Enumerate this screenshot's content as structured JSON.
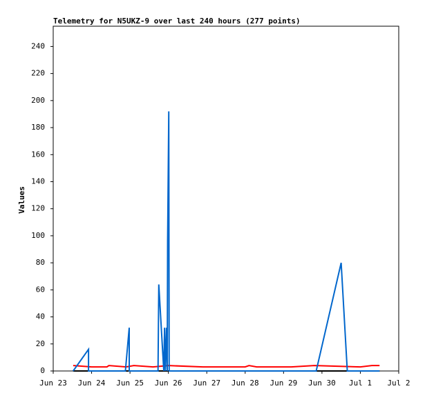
{
  "chart_data": {
    "type": "line",
    "title": "Telemetry for N5UKZ-9 over last 240 hours (277 points)",
    "y_label": "Values",
    "xlim": [
      0,
      9
    ],
    "xticks": [
      {
        "value": 0,
        "label": "Jun 23"
      },
      {
        "value": 1,
        "label": "Jun 24"
      },
      {
        "value": 2,
        "label": "Jun 25"
      },
      {
        "value": 3,
        "label": "Jun 26"
      },
      {
        "value": 4,
        "label": "Jun 27"
      },
      {
        "value": 5,
        "label": "Jun 28"
      },
      {
        "value": 6,
        "label": "Jun 29"
      },
      {
        "value": 7,
        "label": "Jun 30"
      },
      {
        "value": 8,
        "label": "Jul 1"
      },
      {
        "value": 9,
        "label": "Jul 2"
      }
    ],
    "ylim": [
      0,
      255
    ],
    "yticks": [
      0,
      20,
      40,
      60,
      80,
      100,
      120,
      140,
      160,
      180,
      200,
      220,
      240
    ],
    "series": [
      {
        "color": "#000000",
        "x": [
          0.52,
          8.5
        ],
        "values": [
          0,
          0
        ]
      },
      {
        "color": "#ff0000",
        "x": [
          0.52,
          1.0,
          1.4,
          1.45,
          1.9,
          2.1,
          2.6,
          3.0,
          3.9,
          4.3,
          5.0,
          5.1,
          5.3,
          6.0,
          6.2,
          6.8,
          8.0,
          8.3,
          8.5
        ],
        "values": [
          4,
          3,
          3,
          4,
          3,
          4,
          3,
          4,
          3,
          3,
          3,
          4,
          3,
          3,
          3,
          4,
          3,
          4,
          4
        ]
      },
      {
        "color": "#0066cc",
        "x": [
          0.52,
          0.92,
          0.92,
          1.88,
          1.98,
          1.98,
          2.73,
          2.75,
          2.88,
          2.9,
          2.92,
          2.95,
          2.97,
          2.98,
          3.0,
          3.01,
          3.02,
          6.85,
          7.5,
          7.66,
          8.5
        ],
        "values": [
          0,
          16,
          0,
          0,
          32,
          0,
          0,
          64,
          0,
          32,
          0,
          32,
          0,
          96,
          160,
          192,
          0,
          0,
          80,
          0,
          0
        ]
      }
    ]
  }
}
